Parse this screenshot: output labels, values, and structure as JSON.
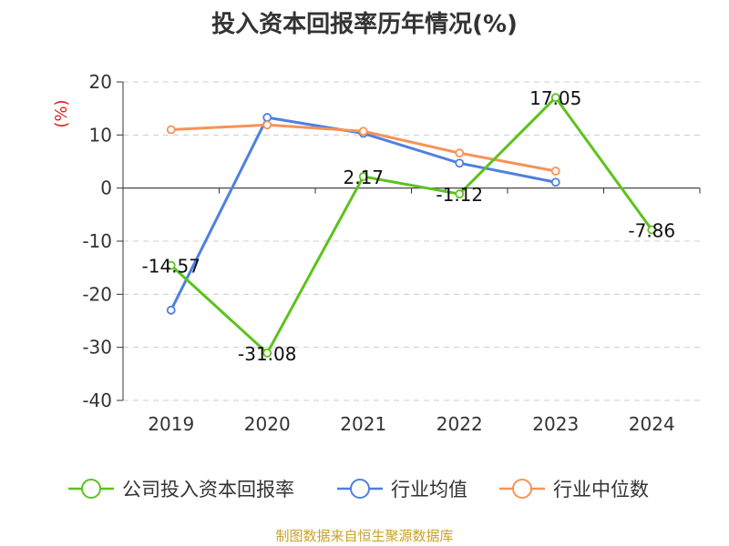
{
  "chart_data": {
    "type": "line",
    "title": "投入资本回报率历年情况(%)",
    "ylabel": "(%)",
    "xlabel": "",
    "categories": [
      "2019",
      "2020",
      "2021",
      "2022",
      "2023",
      "2024"
    ],
    "ylim": [
      -40,
      20
    ],
    "yticks": [
      20,
      10,
      0,
      -10,
      -20,
      -30,
      -40
    ],
    "grid": true,
    "legend_position": "bottom",
    "series": [
      {
        "name": "公司投入资本回报率",
        "color": "#5dc21d",
        "values": [
          -14.57,
          -31.08,
          2.17,
          -1.12,
          17.05,
          -7.86
        ],
        "labels": [
          "-14.57",
          "-31.08",
          "2.17",
          "-1.12",
          "17.05",
          "-7.86"
        ]
      },
      {
        "name": "行业均值",
        "color": "#4f7fe0",
        "values": [
          -23.0,
          13.3,
          10.3,
          4.7,
          1.1,
          null
        ]
      },
      {
        "name": "行业中位数",
        "color": "#f79258",
        "values": [
          11.0,
          11.9,
          10.7,
          6.6,
          3.2,
          null
        ]
      }
    ]
  },
  "source_text": "制图数据来自恒生聚源数据库"
}
